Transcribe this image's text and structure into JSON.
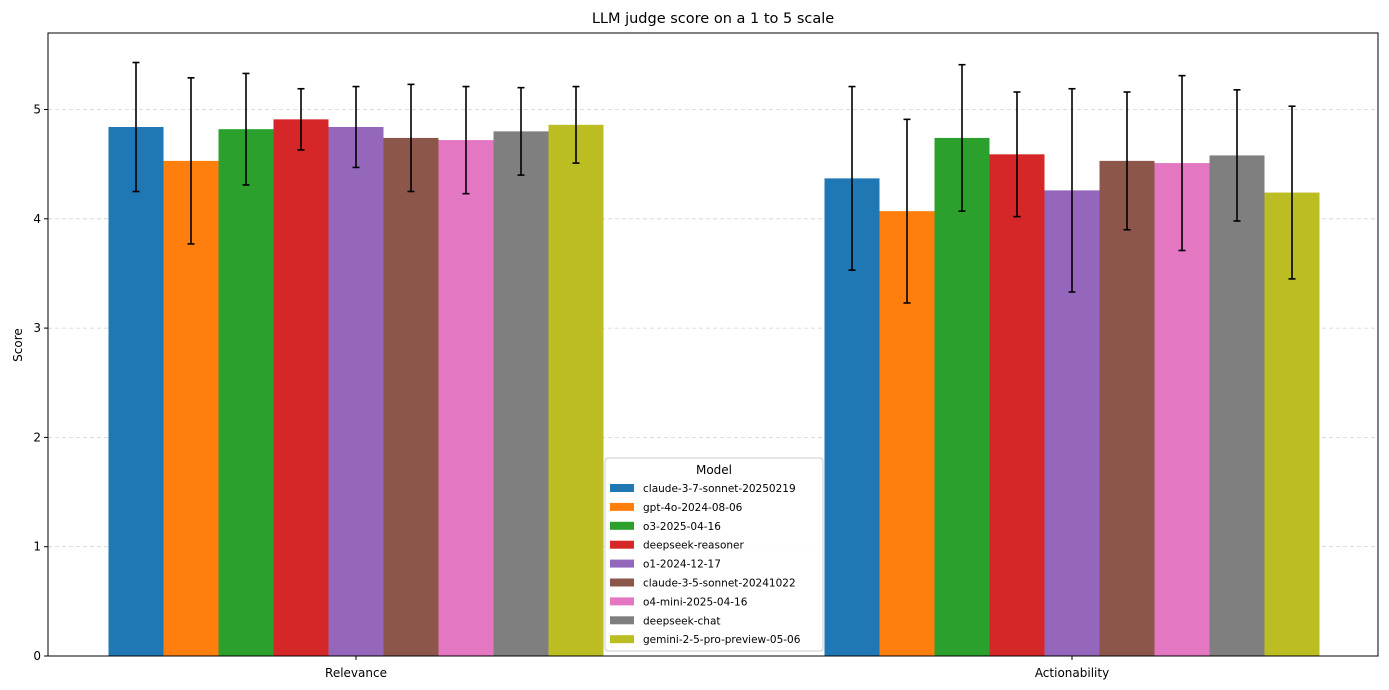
{
  "chart_data": {
    "type": "bar",
    "title": "LLM judge score on a 1 to 5 scale",
    "xlabel": "",
    "ylabel": "Score",
    "ylim": [
      0,
      5.7
    ],
    "yticks": [
      0,
      1,
      2,
      3,
      4,
      5
    ],
    "grid": "y dashed",
    "legend": {
      "title": "Model",
      "placement": "bottom-center"
    },
    "categories": [
      "Relevance",
      "Actionability"
    ],
    "series": [
      {
        "name": "claude-3-7-sonnet-20250219",
        "color": "#1f77b4",
        "values": [
          4.84,
          4.37
        ],
        "errors": [
          0.59,
          0.84
        ]
      },
      {
        "name": "gpt-4o-2024-08-06",
        "color": "#ff7f0e",
        "values": [
          4.53,
          4.07
        ],
        "errors": [
          0.76,
          0.84
        ]
      },
      {
        "name": "o3-2025-04-16",
        "color": "#2ca02c",
        "values": [
          4.82,
          4.74
        ],
        "errors": [
          0.51,
          0.67
        ]
      },
      {
        "name": "deepseek-reasoner",
        "color": "#d62728",
        "values": [
          4.91,
          4.59
        ],
        "errors": [
          0.28,
          0.57
        ]
      },
      {
        "name": "o1-2024-12-17",
        "color": "#9467bd",
        "values": [
          4.84,
          4.26
        ],
        "errors": [
          0.37,
          0.93
        ]
      },
      {
        "name": "claude-3-5-sonnet-20241022",
        "color": "#8c564b",
        "values": [
          4.74,
          4.53
        ],
        "errors": [
          0.49,
          0.63
        ]
      },
      {
        "name": "o4-mini-2025-04-16",
        "color": "#e377c2",
        "values": [
          4.72,
          4.51
        ],
        "errors": [
          0.49,
          0.8
        ]
      },
      {
        "name": "deepseek-chat",
        "color": "#7f7f7f",
        "values": [
          4.8,
          4.58
        ],
        "errors": [
          0.4,
          0.6
        ]
      },
      {
        "name": "gemini-2-5-pro-preview-05-06",
        "color": "#bcbd22",
        "values": [
          4.86,
          4.24
        ],
        "errors": [
          0.35,
          0.79
        ]
      }
    ]
  }
}
